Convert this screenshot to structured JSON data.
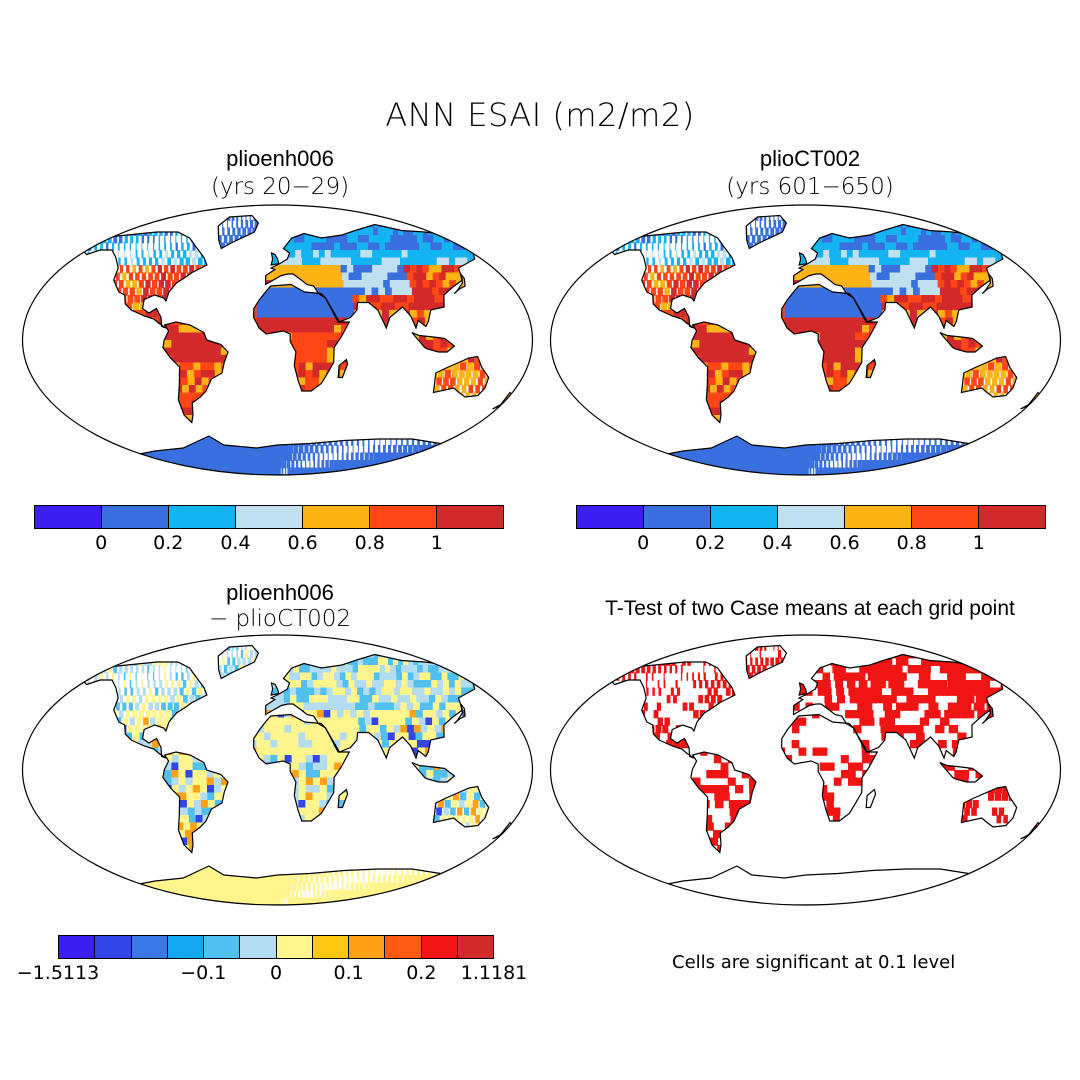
{
  "title": "ANN ESAI (m2/m2)",
  "panels": [
    {
      "name": "plioenh006",
      "subtitle": "(yrs 20−29)"
    },
    {
      "name": "plioCT002",
      "subtitle": "(yrs 601−650)"
    },
    {
      "name": "plioenh006",
      "subtitle": "− plioCT002"
    },
    {
      "name": "T-Test of two Case means at each grid point",
      "subtitle": ""
    }
  ],
  "colorbar_abs": {
    "colors": [
      "#3a1ff0",
      "#3a6fe0",
      "#14b4f0",
      "#c0e0f0",
      "#fcb414",
      "#ff4614",
      "#d22a2a"
    ],
    "ticks": [
      "0",
      "0.2",
      "0.4",
      "0.6",
      "0.8",
      "1"
    ]
  },
  "colorbar_diff": {
    "colors": [
      "#3a1ff0",
      "#3246e6",
      "#3a78e8",
      "#14a8f0",
      "#50c0f0",
      "#b4dcf0",
      "#fff58c",
      "#fcc814",
      "#fca014",
      "#ff5a14",
      "#f01414",
      "#d22a2a"
    ],
    "ticks": [
      "−1.5113",
      "−0.1",
      "0",
      "0.1",
      "0.2",
      "1.1181"
    ]
  },
  "note": "Cells are significant at 0.1 level"
}
